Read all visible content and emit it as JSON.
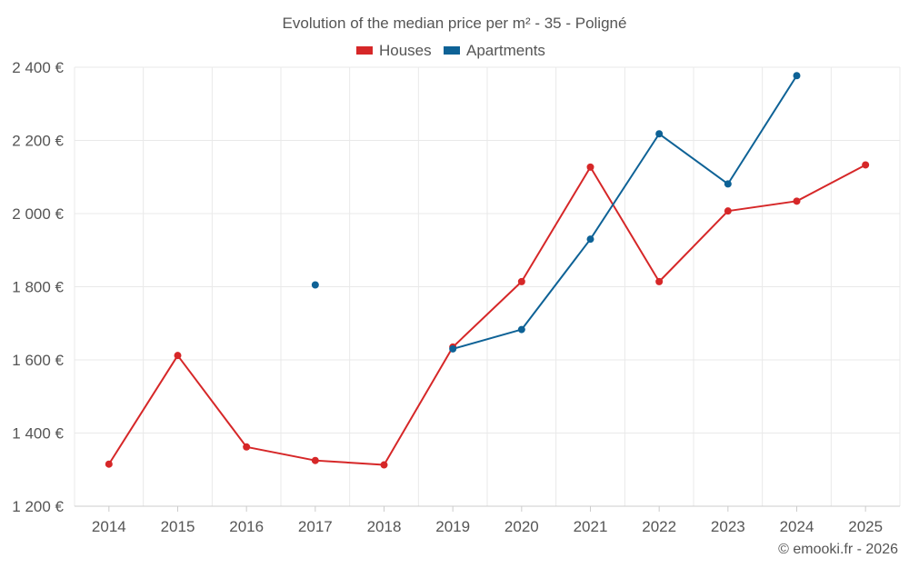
{
  "chart_data": {
    "type": "line",
    "title": "Evolution of the median price per m² - 35 - Poligné",
    "categories": [
      "2014",
      "2015",
      "2016",
      "2017",
      "2018",
      "2019",
      "2020",
      "2021",
      "2022",
      "2023",
      "2024",
      "2025"
    ],
    "series": [
      {
        "name": "Houses",
        "color": "#d62728",
        "values": [
          1315,
          1612,
          1362,
          1325,
          1313,
          1635,
          1814,
          2127,
          1814,
          2007,
          2034,
          2133
        ]
      },
      {
        "name": "Apartments",
        "color": "#0e6296",
        "values": [
          null,
          null,
          null,
          1805,
          null,
          1630,
          1683,
          1930,
          2218,
          2081,
          2377,
          null
        ]
      }
    ],
    "yticks": [
      "1 200 €",
      "1 400 €",
      "1 600 €",
      "1 800 €",
      "2 000 €",
      "2 200 €",
      "2 400 €"
    ],
    "ytick_values": [
      1200,
      1400,
      1600,
      1800,
      2000,
      2200,
      2400
    ],
    "ylim": [
      1200,
      2400
    ],
    "xlabel": "",
    "ylabel": "",
    "legend_position": "top-center",
    "credit": "© emooki.fr - 2026"
  }
}
